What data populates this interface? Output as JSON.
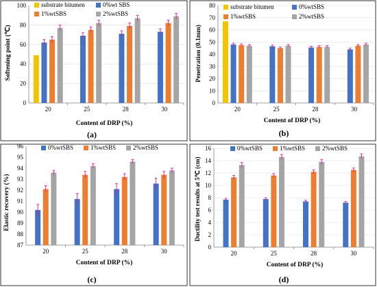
{
  "colors": {
    "substrate": "#f5c400",
    "sbs0": "#4472c4",
    "sbs1": "#ed7d31",
    "sbs2": "#a5a5a5",
    "error": "#e0199a",
    "grid": "#d9d9d9",
    "axis": "#808080"
  },
  "chart_data": [
    {
      "id": "a",
      "type": "bar",
      "panel_label": "(a)",
      "ylabel": "Softening point (℃)",
      "xlabel": "Content of DRP (%)",
      "categories": [
        "20",
        "25",
        "28",
        "30"
      ],
      "ylim": [
        0,
        100
      ],
      "yticks": [
        "0",
        "20",
        "40",
        "60",
        "80",
        "100"
      ],
      "grid": true,
      "legend_position": "top",
      "series": [
        {
          "name": "substrate bitumen",
          "color_key": "substrate",
          "values": [
            49,
            null,
            null,
            null
          ],
          "errors": [
            0,
            null,
            null,
            null
          ]
        },
        {
          "name": "0%wt SBS",
          "color_key": "sbs0",
          "values": [
            62,
            69,
            71,
            73
          ],
          "errors": [
            3,
            3,
            3,
            3
          ]
        },
        {
          "name": "1%wtSBS",
          "color_key": "sbs1",
          "values": [
            65,
            75,
            79,
            82
          ],
          "errors": [
            3,
            3,
            3,
            3
          ]
        },
        {
          "name": "2%wtSBS",
          "color_key": "sbs2",
          "values": [
            77,
            82,
            87,
            89
          ],
          "errors": [
            3,
            3,
            3,
            3
          ]
        }
      ]
    },
    {
      "id": "b",
      "type": "bar",
      "panel_label": "(b)",
      "ylabel": "Penetration (0.1mm)",
      "xlabel": "Content of DRP (%)",
      "categories": [
        "20",
        "25",
        "28",
        "30"
      ],
      "ylim": [
        0,
        80
      ],
      "yticks": [
        "0",
        "10",
        "20",
        "30",
        "40",
        "50",
        "60",
        "70",
        "80"
      ],
      "grid": true,
      "legend_position": "top",
      "series": [
        {
          "name": "substrate bitumen",
          "color_key": "substrate",
          "values": [
            67,
            null,
            null,
            null
          ],
          "errors": [
            0,
            null,
            null,
            null
          ]
        },
        {
          "name": "0%wtSBS",
          "color_key": "sbs0",
          "values": [
            48,
            46.5,
            45.5,
            44
          ],
          "errors": [
            1,
            1,
            1,
            1
          ]
        },
        {
          "name": "1%wtSBS",
          "color_key": "sbs1",
          "values": [
            47.5,
            45,
            46,
            47
          ],
          "errors": [
            1,
            1,
            1,
            1
          ]
        },
        {
          "name": "2%wtSBS",
          "color_key": "sbs2",
          "values": [
            47,
            47,
            46,
            48
          ],
          "errors": [
            1,
            1,
            1,
            1
          ]
        }
      ]
    },
    {
      "id": "c",
      "type": "bar",
      "panel_label": "(c)",
      "ylabel": "Elastic recovery (%)",
      "xlabel": "Content of DRP (%)",
      "categories": [
        "20",
        "25",
        "28",
        "30"
      ],
      "ylim": [
        87,
        96
      ],
      "yticks": [
        "87",
        "88",
        "89",
        "90",
        "91",
        "92",
        "93",
        "94",
        "95",
        "96"
      ],
      "grid": false,
      "legend_position": "top",
      "series": [
        {
          "name": "0%wtSBS",
          "color_key": "sbs0",
          "values": [
            90.2,
            91.2,
            92.1,
            92.6
          ],
          "errors": [
            0.5,
            0.5,
            0.5,
            0.5
          ]
        },
        {
          "name": "1%wtSBS",
          "color_key": "sbs1",
          "values": [
            92.1,
            93.4,
            93.2,
            93.4
          ],
          "errors": [
            0.3,
            0.3,
            0.3,
            0.3
          ]
        },
        {
          "name": "2%wtSBS",
          "color_key": "sbs2",
          "values": [
            93.6,
            94.2,
            94.6,
            93.8
          ],
          "errors": [
            0.2,
            0.2,
            0.2,
            0.2
          ]
        }
      ]
    },
    {
      "id": "d",
      "type": "bar",
      "panel_label": "(d)",
      "ylabel": "Ductility test results at 5℃ (cm)",
      "xlabel": "Content of DRP (%)",
      "categories": [
        "20",
        "25",
        "28",
        "30"
      ],
      "ylim": [
        0,
        16
      ],
      "yticks": [
        "0",
        "2",
        "4",
        "6",
        "8",
        "10",
        "12",
        "14",
        "16"
      ],
      "grid": true,
      "legend_position": "top",
      "series": [
        {
          "name": "0%wtSBS",
          "color_key": "sbs0",
          "values": [
            7.7,
            7.8,
            7.4,
            7.2
          ],
          "errors": [
            0.2,
            0.2,
            0.2,
            0.2
          ]
        },
        {
          "name": "1%wtSBS",
          "color_key": "sbs1",
          "values": [
            11.3,
            11.6,
            12.2,
            12.5
          ],
          "errors": [
            0.3,
            0.3,
            0.3,
            0.3
          ]
        },
        {
          "name": "2%wtSBS",
          "color_key": "sbs2",
          "values": [
            13.3,
            14.6,
            13.8,
            14.7
          ],
          "errors": [
            0.4,
            0.4,
            0.4,
            0.4
          ]
        }
      ]
    }
  ]
}
